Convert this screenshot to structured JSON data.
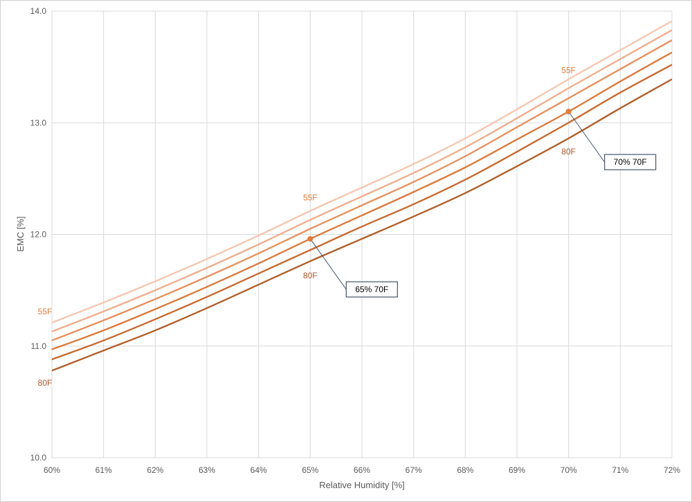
{
  "chart_data": {
    "type": "line",
    "xlabel": "Relative Humidity [%]",
    "ylabel": "EMC [%]",
    "xlim": [
      60,
      72
    ],
    "ylim": [
      10.0,
      14.0
    ],
    "x_ticks": [
      60,
      61,
      62,
      63,
      64,
      65,
      66,
      67,
      68,
      69,
      70,
      71,
      72
    ],
    "x_tick_labels": [
      "60%",
      "61%",
      "62%",
      "63%",
      "64%",
      "65%",
      "66%",
      "67%",
      "68%",
      "69%",
      "70%",
      "71%",
      "72%"
    ],
    "y_ticks": [
      10.0,
      11.0,
      12.0,
      13.0,
      14.0
    ],
    "y_tick_labels": [
      "10.0",
      "11.0",
      "12.0",
      "13.0",
      "14.0"
    ],
    "grid": true,
    "legend": "none",
    "x": [
      60,
      61,
      62,
      63,
      64,
      65,
      66,
      67,
      68,
      69,
      70,
      71,
      72
    ],
    "series": [
      {
        "color": "#F6C7B2",
        "values": [
          11.21,
          11.39,
          11.58,
          11.78,
          11.99,
          12.21,
          12.42,
          12.63,
          12.86,
          13.12,
          13.39,
          13.65,
          13.91
        ]
      },
      {
        "color": "#F0AE8E",
        "values": [
          11.13,
          11.31,
          11.5,
          11.7,
          11.91,
          12.13,
          12.34,
          12.55,
          12.78,
          13.04,
          13.31,
          13.57,
          13.83
        ]
      },
      {
        "color": "#E8915F",
        "values": [
          11.05,
          11.23,
          11.42,
          11.62,
          11.83,
          12.05,
          12.26,
          12.47,
          12.7,
          12.96,
          13.22,
          13.48,
          13.74
        ]
      },
      {
        "color": "#DB7A3C",
        "values": [
          10.97,
          11.14,
          11.33,
          11.53,
          11.74,
          11.96,
          12.17,
          12.38,
          12.6,
          12.85,
          13.1,
          13.37,
          13.63
        ]
      },
      {
        "color": "#C8692E",
        "values": [
          10.88,
          11.05,
          11.24,
          11.44,
          11.65,
          11.86,
          12.07,
          12.27,
          12.49,
          12.74,
          13.0,
          13.27,
          13.52
        ]
      },
      {
        "color": "#B25F2A",
        "values": [
          10.78,
          10.96,
          11.14,
          11.34,
          11.55,
          11.76,
          11.96,
          12.16,
          12.37,
          12.61,
          12.86,
          13.13,
          13.39
        ]
      }
    ],
    "curve_labels": [
      {
        "text": "55F",
        "x": 60.0,
        "y": 11.31,
        "color": "#E07B39"
      },
      {
        "text": "80F",
        "x": 60.0,
        "y": 10.67,
        "color": "#A9572A"
      },
      {
        "text": "55F",
        "x": 65.0,
        "y": 12.33,
        "color": "#E07B39"
      },
      {
        "text": "80F",
        "x": 65.0,
        "y": 11.63,
        "color": "#A9572A"
      },
      {
        "text": "55F",
        "x": 70.0,
        "y": 13.47,
        "color": "#E07B39"
      },
      {
        "text": "80F",
        "x": 70.0,
        "y": 12.74,
        "color": "#A9572A"
      }
    ],
    "annotations": [
      {
        "text": "65% 70F",
        "point_x": 65,
        "point_y": 11.96
      },
      {
        "text": "70% 70F",
        "point_x": 70,
        "point_y": 13.1
      }
    ],
    "marker_color": "#E07B39",
    "grid_color": "#d9d9d9",
    "callout_border_color": "#44546A"
  }
}
